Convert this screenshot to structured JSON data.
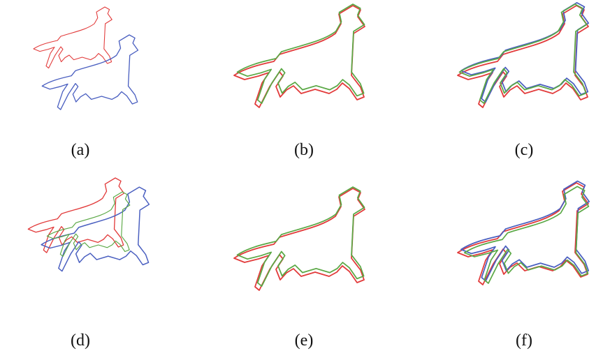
{
  "panels": {
    "labels": [
      "(a)",
      "(b)",
      "(c)",
      "(d)",
      "(e)",
      "(f)"
    ]
  }
}
